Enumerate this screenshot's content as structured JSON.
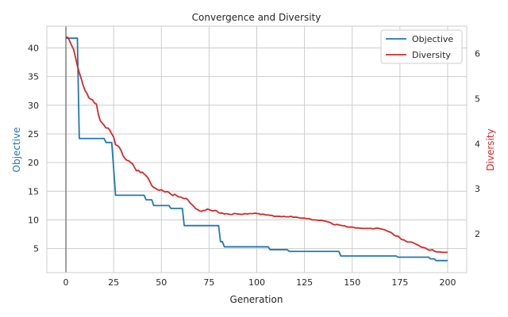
{
  "chart_data": {
    "type": "line",
    "title": "Convergence and Diversity",
    "xlabel": "Generation",
    "ylabel_left": "Objective",
    "ylabel_right": "Diversity",
    "xlim": [
      -10,
      210
    ],
    "ylim_left": [
      0.8,
      43.8
    ],
    "ylim_right": [
      1.14,
      6.61
    ],
    "x_ticks": [
      0,
      25,
      50,
      75,
      100,
      125,
      150,
      175,
      200
    ],
    "y_ticks_left": [
      5,
      10,
      15,
      20,
      25,
      30,
      35,
      40
    ],
    "y_ticks_right": [
      2,
      3,
      4,
      5,
      6
    ],
    "grid": true,
    "vertical_marker_x": 0,
    "legend_position": "top-right",
    "colors": {
      "objective": "#1f77b4",
      "diversity": "#d62728",
      "grid": "#cccccc",
      "spine": "#cccccc",
      "marker": "#808080"
    },
    "series": [
      {
        "name": "Objective",
        "axis": "left",
        "points": [
          [
            0,
            41.7
          ],
          [
            6,
            41.7
          ],
          [
            7,
            24.2
          ],
          [
            20,
            24.2
          ],
          [
            21,
            23.5
          ],
          [
            24,
            23.5
          ],
          [
            25,
            19
          ],
          [
            26,
            14.3
          ],
          [
            41,
            14.3
          ],
          [
            42,
            13.5
          ],
          [
            45,
            13.5
          ],
          [
            46,
            12.5
          ],
          [
            54,
            12.5
          ],
          [
            55,
            12
          ],
          [
            61,
            12
          ],
          [
            62,
            9
          ],
          [
            80,
            9
          ],
          [
            81,
            6.2
          ],
          [
            82,
            6.2
          ],
          [
            83,
            5.3
          ],
          [
            106,
            5.3
          ],
          [
            107,
            4.8
          ],
          [
            116,
            4.8
          ],
          [
            117,
            4.5
          ],
          [
            143,
            4.5
          ],
          [
            144,
            3.7
          ],
          [
            173,
            3.7
          ],
          [
            174,
            3.5
          ],
          [
            190,
            3.5
          ],
          [
            191,
            3.2
          ],
          [
            193,
            3.2
          ],
          [
            194,
            2.9
          ],
          [
            200,
            2.9
          ]
        ]
      },
      {
        "name": "Diversity",
        "axis": "right",
        "points": [
          [
            0,
            6.37
          ],
          [
            1,
            6.36
          ],
          [
            2,
            6.28
          ],
          [
            3,
            6.18
          ],
          [
            4,
            6.1
          ],
          [
            5,
            5.92
          ],
          [
            6,
            5.73
          ],
          [
            7,
            5.58
          ],
          [
            8,
            5.45
          ],
          [
            9,
            5.3
          ],
          [
            10,
            5.18
          ],
          [
            11,
            5.12
          ],
          [
            12,
            5.02
          ],
          [
            13,
            4.99
          ],
          [
            14,
            4.97
          ],
          [
            15,
            4.9
          ],
          [
            16,
            4.88
          ],
          [
            17,
            4.65
          ],
          [
            18,
            4.51
          ],
          [
            19,
            4.46
          ],
          [
            20,
            4.41
          ],
          [
            21,
            4.35
          ],
          [
            22,
            4.35
          ],
          [
            23,
            4.3
          ],
          [
            24,
            4.22
          ],
          [
            25,
            4.15
          ],
          [
            26,
            3.98
          ],
          [
            27,
            3.96
          ],
          [
            28,
            3.92
          ],
          [
            29,
            3.84
          ],
          [
            30,
            3.73
          ],
          [
            31,
            3.67
          ],
          [
            32,
            3.63
          ],
          [
            33,
            3.62
          ],
          [
            34,
            3.58
          ],
          [
            35,
            3.55
          ],
          [
            36,
            3.47
          ],
          [
            37,
            3.4
          ],
          [
            38,
            3.41
          ],
          [
            39,
            3.36
          ],
          [
            40,
            3.37
          ],
          [
            41,
            3.33
          ],
          [
            42,
            3.29
          ],
          [
            43,
            3.24
          ],
          [
            44,
            3.16
          ],
          [
            45,
            3.07
          ],
          [
            46,
            3.03
          ],
          [
            47,
            3.01
          ],
          [
            48,
            2.98
          ],
          [
            49,
            2.97
          ],
          [
            50,
            2.98
          ],
          [
            51,
            2.95
          ],
          [
            52,
            2.93
          ],
          [
            53,
            2.94
          ],
          [
            54,
            2.92
          ],
          [
            55,
            2.88
          ],
          [
            56,
            2.85
          ],
          [
            57,
            2.88
          ],
          [
            58,
            2.85
          ],
          [
            59,
            2.82
          ],
          [
            60,
            2.82
          ],
          [
            61,
            2.8
          ],
          [
            62,
            2.78
          ],
          [
            63,
            2.79
          ],
          [
            64,
            2.75
          ],
          [
            65,
            2.69
          ],
          [
            66,
            2.65
          ],
          [
            67,
            2.61
          ],
          [
            68,
            2.56
          ],
          [
            69,
            2.54
          ],
          [
            70,
            2.51
          ],
          [
            71,
            2.5
          ],
          [
            72,
            2.52
          ],
          [
            73,
            2.52
          ],
          [
            74,
            2.55
          ],
          [
            75,
            2.54
          ],
          [
            76,
            2.52
          ],
          [
            77,
            2.51
          ],
          [
            78,
            2.52
          ],
          [
            79,
            2.51
          ],
          [
            80,
            2.47
          ],
          [
            81,
            2.46
          ],
          [
            82,
            2.46
          ],
          [
            83,
            2.44
          ],
          [
            84,
            2.45
          ],
          [
            85,
            2.44
          ],
          [
            86,
            2.43
          ],
          [
            87,
            2.43
          ],
          [
            88,
            2.45
          ],
          [
            89,
            2.45
          ],
          [
            90,
            2.44
          ],
          [
            91,
            2.44
          ],
          [
            92,
            2.43
          ],
          [
            93,
            2.44
          ],
          [
            94,
            2.45
          ],
          [
            95,
            2.44
          ],
          [
            96,
            2.45
          ],
          [
            97,
            2.45
          ],
          [
            98,
            2.45
          ],
          [
            99,
            2.46
          ],
          [
            100,
            2.45
          ],
          [
            101,
            2.45
          ],
          [
            102,
            2.43
          ],
          [
            103,
            2.44
          ],
          [
            104,
            2.43
          ],
          [
            105,
            2.42
          ],
          [
            106,
            2.42
          ],
          [
            107,
            2.41
          ],
          [
            108,
            2.41
          ],
          [
            109,
            2.39
          ],
          [
            110,
            2.39
          ],
          [
            111,
            2.39
          ],
          [
            112,
            2.39
          ],
          [
            113,
            2.38
          ],
          [
            114,
            2.39
          ],
          [
            115,
            2.38
          ],
          [
            116,
            2.38
          ],
          [
            117,
            2.38
          ],
          [
            118,
            2.39
          ],
          [
            119,
            2.37
          ],
          [
            120,
            2.37
          ],
          [
            121,
            2.37
          ],
          [
            122,
            2.36
          ],
          [
            123,
            2.35
          ],
          [
            124,
            2.35
          ],
          [
            125,
            2.35
          ],
          [
            126,
            2.34
          ],
          [
            127,
            2.34
          ],
          [
            128,
            2.33
          ],
          [
            129,
            2.31
          ],
          [
            130,
            2.31
          ],
          [
            131,
            2.31
          ],
          [
            132,
            2.3
          ],
          [
            133,
            2.3
          ],
          [
            134,
            2.3
          ],
          [
            135,
            2.29
          ],
          [
            136,
            2.28
          ],
          [
            137,
            2.27
          ],
          [
            138,
            2.26
          ],
          [
            139,
            2.24
          ],
          [
            140,
            2.21
          ],
          [
            141,
            2.2
          ],
          [
            142,
            2.21
          ],
          [
            143,
            2.2
          ],
          [
            144,
            2.19
          ],
          [
            145,
            2.18
          ],
          [
            146,
            2.18
          ],
          [
            147,
            2.16
          ],
          [
            148,
            2.15
          ],
          [
            149,
            2.15
          ],
          [
            150,
            2.15
          ],
          [
            151,
            2.14
          ],
          [
            152,
            2.13
          ],
          [
            153,
            2.13
          ],
          [
            154,
            2.13
          ],
          [
            155,
            2.12
          ],
          [
            156,
            2.12
          ],
          [
            157,
            2.12
          ],
          [
            158,
            2.12
          ],
          [
            159,
            2.12
          ],
          [
            160,
            2.12
          ],
          [
            161,
            2.11
          ],
          [
            162,
            2.12
          ],
          [
            163,
            2.13
          ],
          [
            164,
            2.12
          ],
          [
            165,
            2.11
          ],
          [
            166,
            2.1
          ],
          [
            167,
            2.09
          ],
          [
            168,
            2.07
          ],
          [
            169,
            2.05
          ],
          [
            170,
            2.04
          ],
          [
            171,
            2.01
          ],
          [
            172,
            1.97
          ],
          [
            173,
            1.95
          ],
          [
            174,
            1.95
          ],
          [
            175,
            1.91
          ],
          [
            176,
            1.87
          ],
          [
            177,
            1.87
          ],
          [
            178,
            1.84
          ],
          [
            179,
            1.82
          ],
          [
            180,
            1.82
          ],
          [
            181,
            1.82
          ],
          [
            182,
            1.8
          ],
          [
            183,
            1.78
          ],
          [
            184,
            1.76
          ],
          [
            185,
            1.74
          ],
          [
            186,
            1.71
          ],
          [
            187,
            1.7
          ],
          [
            188,
            1.69
          ],
          [
            189,
            1.67
          ],
          [
            190,
            1.64
          ],
          [
            191,
            1.64
          ],
          [
            192,
            1.65
          ],
          [
            193,
            1.62
          ],
          [
            194,
            1.6
          ],
          [
            195,
            1.6
          ],
          [
            196,
            1.6
          ],
          [
            197,
            1.59
          ],
          [
            198,
            1.59
          ],
          [
            199,
            1.59
          ],
          [
            200,
            1.59
          ]
        ]
      }
    ]
  }
}
